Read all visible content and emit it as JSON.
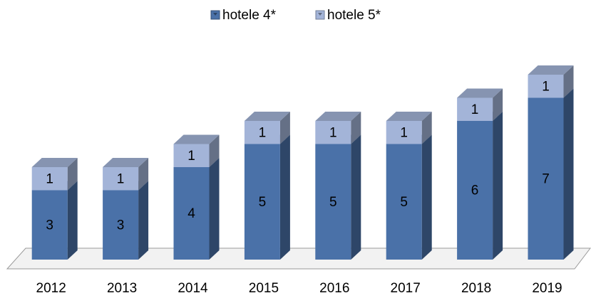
{
  "chart_data": {
    "type": "bar3d_stacked",
    "categories": [
      "2012",
      "2013",
      "2014",
      "2015",
      "2016",
      "2017",
      "2018",
      "2019"
    ],
    "series": [
      {
        "name": "hotele 4*",
        "color": "#4a71a8",
        "values": [
          3,
          3,
          4,
          5,
          5,
          5,
          6,
          7
        ]
      },
      {
        "name": "hotele 5*",
        "color": "#a3b4d8",
        "values": [
          1,
          1,
          1,
          1,
          1,
          1,
          1,
          1
        ]
      }
    ],
    "legend": "top"
  }
}
